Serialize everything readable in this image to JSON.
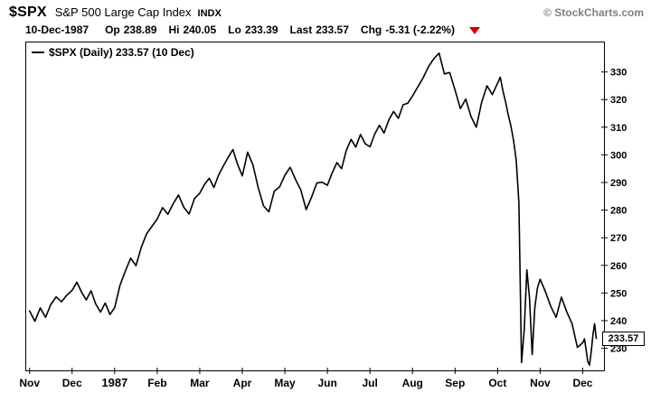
{
  "header": {
    "symbol": "$SPX",
    "name": "S&P 500 Large Cap Index",
    "exchange": "INDX",
    "credit": "© StockCharts.com",
    "date": "10-Dec-1987",
    "quote": {
      "op_label": "Op",
      "op_value": "238.89",
      "hi_label": "Hi",
      "hi_value": "240.05",
      "lo_label": "Lo",
      "lo_value": "233.39",
      "last_label": "Last",
      "last_value": "233.57",
      "chg_label": "Chg",
      "chg_value": "-5.31 (-2.22%)"
    }
  },
  "legend": {
    "text": "$SPX (Daily) 233.57 (10 Dec)"
  },
  "price_label": "233.57",
  "colors": {
    "line": "#000000",
    "chg_arrow": "#cc0000",
    "credit": "#808080"
  },
  "chart_data": {
    "type": "line",
    "title": "$SPX (Daily)",
    "series_name": "$SPX",
    "last": 233.57,
    "xlim": [
      -0.1,
      13.5
    ],
    "ylim": [
      222,
      341
    ],
    "y_ticks": [
      230,
      240,
      250,
      260,
      270,
      280,
      290,
      300,
      310,
      320,
      330
    ],
    "x_ticks": [
      {
        "u": 0,
        "label": "Nov",
        "bold": false
      },
      {
        "u": 1,
        "label": "Dec",
        "bold": false
      },
      {
        "u": 2,
        "label": "1987",
        "bold": true
      },
      {
        "u": 3,
        "label": "Feb",
        "bold": false
      },
      {
        "u": 4,
        "label": "Mar",
        "bold": false
      },
      {
        "u": 5,
        "label": "Apr",
        "bold": false
      },
      {
        "u": 6,
        "label": "May",
        "bold": false
      },
      {
        "u": 7,
        "label": "Jun",
        "bold": false
      },
      {
        "u": 8,
        "label": "Jul",
        "bold": false
      },
      {
        "u": 9,
        "label": "Aug",
        "bold": false
      },
      {
        "u": 10,
        "label": "Sep",
        "bold": false
      },
      {
        "u": 11,
        "label": "Oct",
        "bold": false
      },
      {
        "u": 12,
        "label": "Nov",
        "bold": false
      },
      {
        "u": 13,
        "label": "Dec",
        "bold": false
      }
    ],
    "points": [
      [
        0,
        243.5
      ],
      [
        0.125,
        239.8
      ],
      [
        0.25,
        244.6
      ],
      [
        0.375,
        241.2
      ],
      [
        0.5,
        245.9
      ],
      [
        0.625,
        248.6
      ],
      [
        0.75,
        246.8
      ],
      [
        0.875,
        249.2
      ],
      [
        1,
        251.0
      ],
      [
        1.111,
        253.9
      ],
      [
        1.222,
        250.3
      ],
      [
        1.333,
        247.5
      ],
      [
        1.444,
        250.8
      ],
      [
        1.556,
        246.0
      ],
      [
        1.667,
        243.1
      ],
      [
        1.778,
        246.4
      ],
      [
        1.889,
        242.2
      ],
      [
        2,
        244.7
      ],
      [
        2.125,
        252.8
      ],
      [
        2.25,
        257.9
      ],
      [
        2.375,
        262.6
      ],
      [
        2.5,
        259.9
      ],
      [
        2.625,
        266.5
      ],
      [
        2.75,
        271.4
      ],
      [
        2.875,
        274.1
      ],
      [
        3,
        276.8
      ],
      [
        3.125,
        280.9
      ],
      [
        3.25,
        278.5
      ],
      [
        3.375,
        282.3
      ],
      [
        3.5,
        285.5
      ],
      [
        3.625,
        281.0
      ],
      [
        3.75,
        278.6
      ],
      [
        3.875,
        284.2
      ],
      [
        4,
        286.1
      ],
      [
        4.111,
        289.3
      ],
      [
        4.222,
        291.5
      ],
      [
        4.333,
        288.2
      ],
      [
        4.444,
        292.7
      ],
      [
        4.556,
        296.0
      ],
      [
        4.667,
        299.1
      ],
      [
        4.778,
        301.9
      ],
      [
        4.889,
        296.5
      ],
      [
        5,
        292.4
      ],
      [
        5.125,
        301.0
      ],
      [
        5.25,
        296.3
      ],
      [
        5.375,
        288.1
      ],
      [
        5.5,
        281.5
      ],
      [
        5.625,
        279.4
      ],
      [
        5.75,
        286.8
      ],
      [
        5.875,
        288.4
      ],
      [
        6,
        292.6
      ],
      [
        6.125,
        295.5
      ],
      [
        6.25,
        291.1
      ],
      [
        6.375,
        287.3
      ],
      [
        6.5,
        280.2
      ],
      [
        6.625,
        284.6
      ],
      [
        6.75,
        289.8
      ],
      [
        6.875,
        290.1
      ],
      [
        7,
        289.0
      ],
      [
        7.111,
        293.4
      ],
      [
        7.222,
        297.2
      ],
      [
        7.333,
        295.0
      ],
      [
        7.444,
        301.6
      ],
      [
        7.556,
        305.6
      ],
      [
        7.667,
        302.8
      ],
      [
        7.778,
        307.4
      ],
      [
        7.889,
        304.0
      ],
      [
        8,
        302.9
      ],
      [
        8.111,
        307.5
      ],
      [
        8.222,
        310.7
      ],
      [
        8.333,
        307.9
      ],
      [
        8.444,
        312.7
      ],
      [
        8.556,
        315.7
      ],
      [
        8.667,
        313.2
      ],
      [
        8.778,
        318.1
      ],
      [
        8.889,
        318.7
      ],
      [
        9,
        321.3
      ],
      [
        9.125,
        324.6
      ],
      [
        9.25,
        327.9
      ],
      [
        9.375,
        331.9
      ],
      [
        9.5,
        334.8
      ],
      [
        9.625,
        336.8
      ],
      [
        9.75,
        329.3
      ],
      [
        9.875,
        329.8
      ],
      [
        10,
        323.4
      ],
      [
        10.125,
        316.7
      ],
      [
        10.25,
        320.2
      ],
      [
        10.375,
        313.9
      ],
      [
        10.5,
        310.0
      ],
      [
        10.625,
        319.0
      ],
      [
        10.75,
        325.0
      ],
      [
        10.875,
        321.8
      ],
      [
        11,
        326.0
      ],
      [
        11.062,
        328.1
      ],
      [
        11.125,
        323.2
      ],
      [
        11.187,
        319.1
      ],
      [
        11.25,
        314.5
      ],
      [
        11.312,
        310.6
      ],
      [
        11.375,
        305.2
      ],
      [
        11.437,
        298.1
      ],
      [
        11.5,
        282.7
      ],
      [
        11.562,
        224.8
      ],
      [
        11.625,
        236.8
      ],
      [
        11.687,
        258.4
      ],
      [
        11.75,
        248.3
      ],
      [
        11.812,
        227.7
      ],
      [
        11.875,
        244.8
      ],
      [
        11.937,
        251.8
      ],
      [
        12,
        255.0
      ],
      [
        12.125,
        250.4
      ],
      [
        12.25,
        245.1
      ],
      [
        12.375,
        241.2
      ],
      [
        12.5,
        248.5
      ],
      [
        12.625,
        243.2
      ],
      [
        12.75,
        238.9
      ],
      [
        12.875,
        230.3
      ],
      [
        13,
        232.0
      ],
      [
        13.04,
        233.4
      ],
      [
        13.08,
        229.5
      ],
      [
        13.12,
        225.2
      ],
      [
        13.16,
        223.9
      ],
      [
        13.2,
        228.8
      ],
      [
        13.24,
        234.9
      ],
      [
        13.28,
        238.9
      ],
      [
        13.32,
        233.57
      ]
    ]
  }
}
